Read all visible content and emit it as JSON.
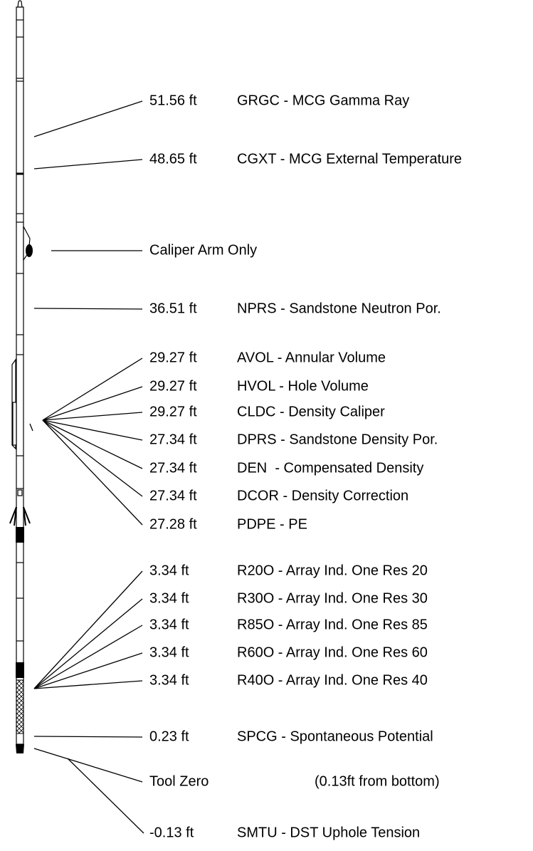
{
  "measurements": [
    {
      "offset": "51.56 ft",
      "description": "GRGC - MCG Gamma Ray"
    },
    {
      "offset": "48.65 ft",
      "description": "CGXT - MCG External Temperature"
    },
    {
      "offset": "36.51 ft",
      "description": "NPRS - Sandstone Neutron Por."
    },
    {
      "offset": "29.27 ft",
      "description": "AVOL - Annular Volume"
    },
    {
      "offset": "29.27 ft",
      "description": "HVOL - Hole Volume"
    },
    {
      "offset": "29.27 ft",
      "description": "CLDC - Density Caliper"
    },
    {
      "offset": "27.34 ft",
      "description": "DPRS - Sandstone Density Por."
    },
    {
      "offset": "27.34 ft",
      "description": "DEN  - Compensated Density"
    },
    {
      "offset": "27.34 ft",
      "description": "DCOR - Density Correction"
    },
    {
      "offset": "27.28 ft",
      "description": "PDPE - PE"
    },
    {
      "offset": "3.34 ft",
      "description": "R20O - Array Ind. One Res 20"
    },
    {
      "offset": "3.34 ft",
      "description": "R30O - Array Ind. One Res 30"
    },
    {
      "offset": "3.34 ft",
      "description": "R85O - Array Ind. One Res 85"
    },
    {
      "offset": "3.34 ft",
      "description": "R60O - Array Ind. One Res 60"
    },
    {
      "offset": "3.34 ft",
      "description": "R40O - Array Ind. One Res 40"
    },
    {
      "offset": "0.23 ft",
      "description": "SPCG - Spontaneous Potential"
    },
    {
      "offset": "-0.13 ft",
      "description": "SMTU - DST Uphole Tension"
    }
  ],
  "caliper": {
    "label": "Caliper Arm Only"
  },
  "tool_zero": {
    "label": "Tool Zero",
    "note": "(0.13ft from bottom)"
  }
}
